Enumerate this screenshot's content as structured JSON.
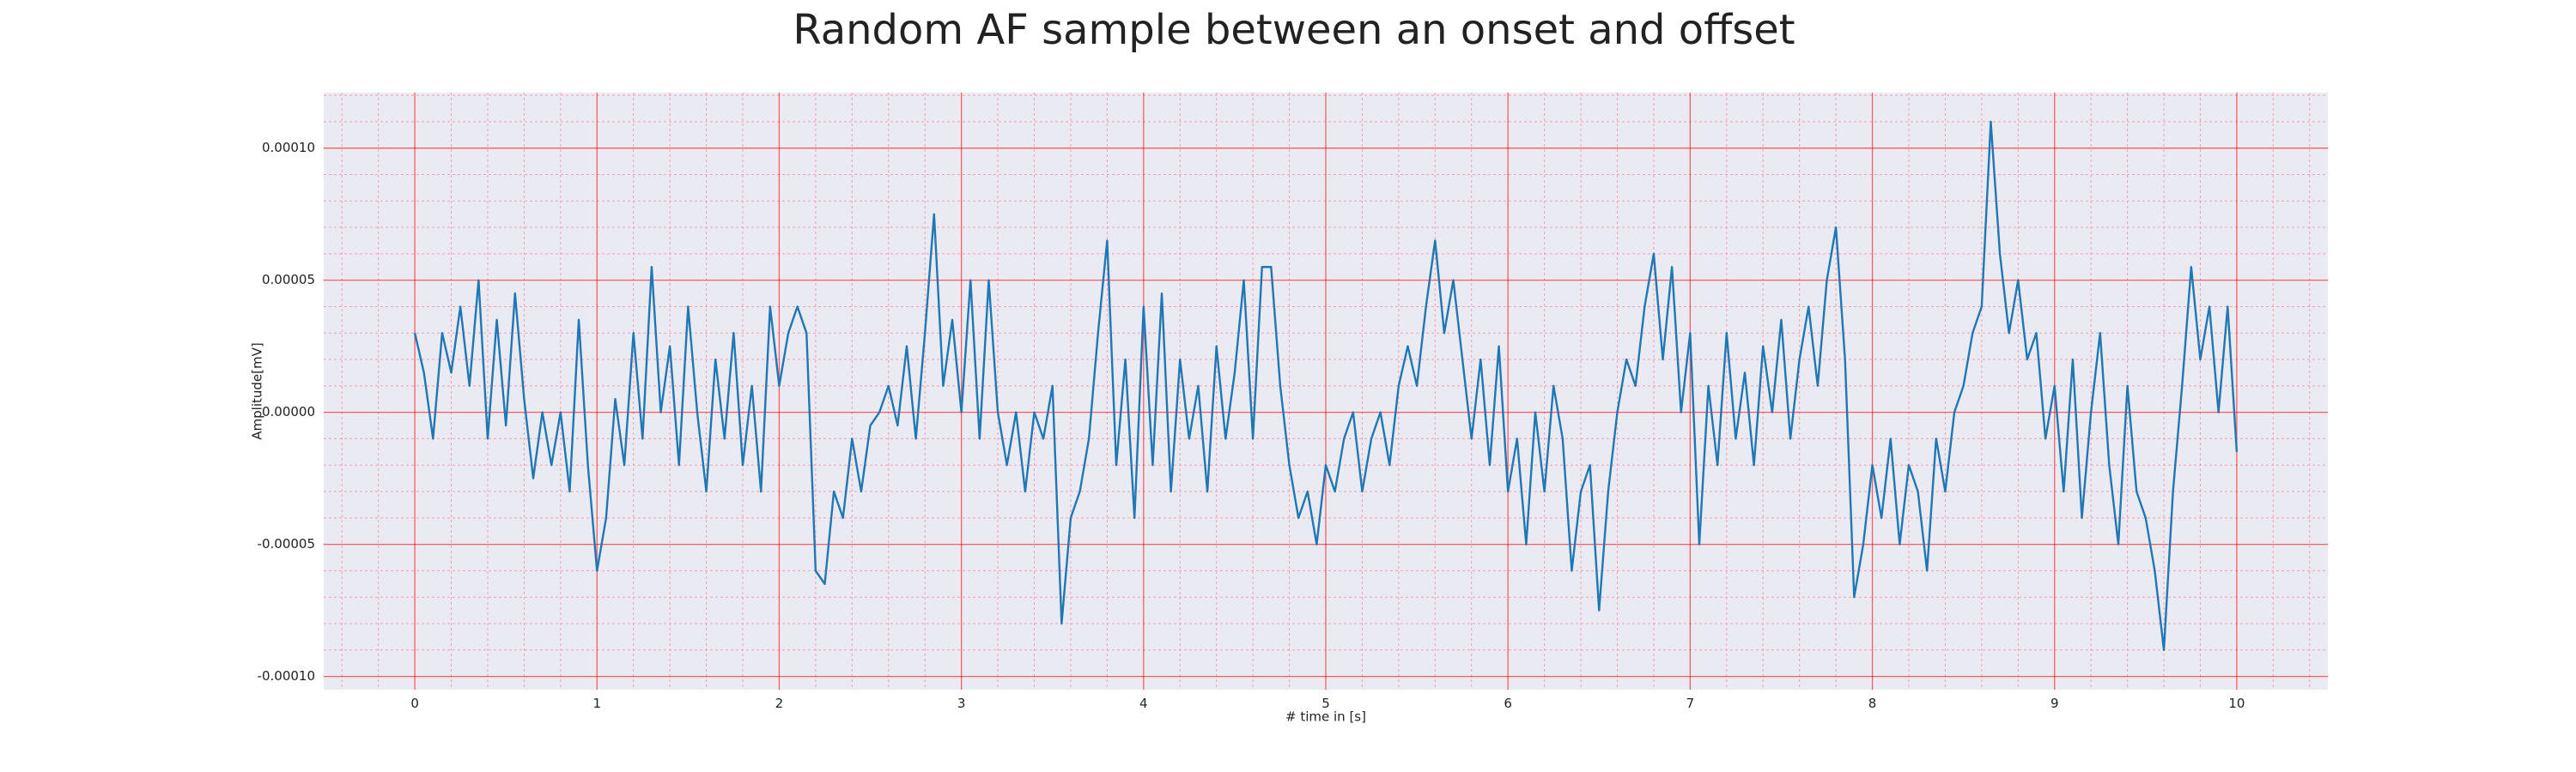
{
  "chart_data": {
    "type": "line",
    "title": "Random AF sample between an onset and offset",
    "xlabel": "# time in [s]",
    "ylabel": "Amplitude[mV]",
    "xlim": [
      -0.5,
      10.5
    ],
    "ylim": [
      -0.000105,
      0.000121
    ],
    "xticks": [
      0,
      1,
      2,
      3,
      4,
      5,
      6,
      7,
      8,
      9,
      10
    ],
    "yticks": [
      {
        "value": -0.0001,
        "label": "-0.00010"
      },
      {
        "value": -5e-05,
        "label": "-0.00005"
      },
      {
        "value": 0,
        "label": "0.00000"
      },
      {
        "value": 5e-05,
        "label": "0.00005"
      },
      {
        "value": 0.0001,
        "label": "0.00010"
      }
    ],
    "xminor_ticks": [
      -0.4,
      -0.2,
      0.2,
      0.4,
      0.6,
      0.8,
      1.2,
      1.4,
      1.6,
      1.8,
      2.2,
      2.4,
      2.6,
      2.8,
      3.2,
      3.4,
      3.6,
      3.8,
      4.2,
      4.4,
      4.6,
      4.8,
      5.2,
      5.4,
      5.6,
      5.8,
      6.2,
      6.4,
      6.6,
      6.8,
      7.2,
      7.4,
      7.6,
      7.8,
      8.2,
      8.4,
      8.6,
      8.8,
      9.2,
      9.4,
      9.6,
      9.8,
      10.2,
      10.4
    ],
    "yminor_ticks": [
      -9e-05,
      -8e-05,
      -7e-05,
      -6e-05,
      -4e-05,
      -3e-05,
      -2e-05,
      -1e-05,
      1e-05,
      2e-05,
      3e-05,
      4e-05,
      6e-05,
      7e-05,
      8e-05,
      9e-05,
      0.00011,
      0.00012
    ],
    "grid": true,
    "minor_grid": true,
    "grid_color": "#ff0000",
    "minor_grid_color": "#f4a0b0",
    "background": "#eaeaf2",
    "series": [
      {
        "color": "#1f77b4",
        "x": [
          0,
          0.05,
          0.1,
          0.15,
          0.2,
          0.25,
          0.3,
          0.35,
          0.4,
          0.45,
          0.5,
          0.55,
          0.6,
          0.65,
          0.7,
          0.75,
          0.8,
          0.85,
          0.9,
          0.95,
          1,
          1.05,
          1.1,
          1.15,
          1.2,
          1.25,
          1.3,
          1.35,
          1.4,
          1.45,
          1.5,
          1.55,
          1.6,
          1.65,
          1.7,
          1.75,
          1.8,
          1.85,
          1.9,
          1.95,
          2,
          2.05,
          2.1,
          2.15,
          2.2,
          2.25,
          2.3,
          2.35,
          2.4,
          2.45,
          2.5,
          2.55,
          2.6,
          2.65,
          2.7,
          2.75,
          2.8,
          2.85,
          2.9,
          2.95,
          3,
          3.05,
          3.1,
          3.15,
          3.2,
          3.25,
          3.3,
          3.35,
          3.4,
          3.45,
          3.5,
          3.55,
          3.6,
          3.65,
          3.7,
          3.75,
          3.8,
          3.85,
          3.9,
          3.95,
          4,
          4.05,
          4.1,
          4.15,
          4.2,
          4.25,
          4.3,
          4.35,
          4.4,
          4.45,
          4.5,
          4.55,
          4.6,
          4.65,
          4.7,
          4.75,
          4.8,
          4.85,
          4.9,
          4.95,
          5,
          5.05,
          5.1,
          5.15,
          5.2,
          5.25,
          5.3,
          5.35,
          5.4,
          5.45,
          5.5,
          5.55,
          5.6,
          5.65,
          5.7,
          5.75,
          5.8,
          5.85,
          5.9,
          5.95,
          6,
          6.05,
          6.1,
          6.15,
          6.2,
          6.25,
          6.3,
          6.35,
          6.4,
          6.45,
          6.5,
          6.55,
          6.6,
          6.65,
          6.7,
          6.75,
          6.8,
          6.85,
          6.9,
          6.95,
          7,
          7.05,
          7.1,
          7.15,
          7.2,
          7.25,
          7.3,
          7.35,
          7.4,
          7.45,
          7.5,
          7.55,
          7.6,
          7.65,
          7.7,
          7.75,
          7.8,
          7.85,
          7.9,
          7.95,
          8,
          8.05,
          8.1,
          8.15,
          8.2,
          8.25,
          8.3,
          8.35,
          8.4,
          8.45,
          8.5,
          8.55,
          8.6,
          8.65,
          8.7,
          8.75,
          8.8,
          8.85,
          8.9,
          8.95,
          9,
          9.05,
          9.1,
          9.15,
          9.2,
          9.25,
          9.3,
          9.35,
          9.4,
          9.45,
          9.5,
          9.55,
          9.6,
          9.65,
          9.7,
          9.75,
          9.8,
          9.85,
          9.9,
          9.95,
          10
        ],
        "values": [
          3e-05,
          1.5e-05,
          -1e-05,
          3e-05,
          1.5e-05,
          4e-05,
          1e-05,
          5e-05,
          -1e-05,
          3.5e-05,
          -5e-06,
          4.5e-05,
          5e-06,
          -2.5e-05,
          0,
          -2e-05,
          0,
          -3e-05,
          3.5e-05,
          -2e-05,
          -6e-05,
          -4e-05,
          5e-06,
          -2e-05,
          3e-05,
          -1e-05,
          5.5e-05,
          0,
          2.5e-05,
          -2e-05,
          4e-05,
          0,
          -3e-05,
          2e-05,
          -1e-05,
          3e-05,
          -2e-05,
          1e-05,
          -3e-05,
          4e-05,
          1e-05,
          3e-05,
          4e-05,
          3e-05,
          -6e-05,
          -6.5e-05,
          -3e-05,
          -4e-05,
          -1e-05,
          -3e-05,
          -5e-06,
          0,
          1e-05,
          -5e-06,
          2.5e-05,
          -1e-05,
          3e-05,
          7.5e-05,
          1e-05,
          3.5e-05,
          0,
          5e-05,
          -1e-05,
          5e-05,
          0,
          -2e-05,
          0,
          -3e-05,
          0,
          -1e-05,
          1e-05,
          -8e-05,
          -4e-05,
          -3e-05,
          -1e-05,
          3e-05,
          6.5e-05,
          -2e-05,
          2e-05,
          -4e-05,
          4e-05,
          -2e-05,
          4.5e-05,
          -3e-05,
          2e-05,
          -1e-05,
          1e-05,
          -3e-05,
          2.5e-05,
          -1e-05,
          1.5e-05,
          5e-05,
          -1e-05,
          5.5e-05,
          5.5e-05,
          1e-05,
          -2e-05,
          -4e-05,
          -3e-05,
          -5e-05,
          -2e-05,
          -3e-05,
          -1e-05,
          0,
          -3e-05,
          -1e-05,
          0,
          -2e-05,
          1e-05,
          2.5e-05,
          1e-05,
          4e-05,
          6.5e-05,
          3e-05,
          5e-05,
          2e-05,
          -1e-05,
          2e-05,
          -2e-05,
          2.5e-05,
          -3e-05,
          -1e-05,
          -5e-05,
          0,
          -3e-05,
          1e-05,
          -1e-05,
          -6e-05,
          -3e-05,
          -2e-05,
          -7.5e-05,
          -3e-05,
          0,
          2e-05,
          1e-05,
          4e-05,
          6e-05,
          2e-05,
          5.5e-05,
          0,
          3e-05,
          -5e-05,
          1e-05,
          -2e-05,
          3e-05,
          -1e-05,
          1.5e-05,
          -2e-05,
          2.5e-05,
          0,
          3.5e-05,
          -1e-05,
          2e-05,
          4e-05,
          1e-05,
          5e-05,
          7e-05,
          2e-05,
          -7e-05,
          -5e-05,
          -2e-05,
          -4e-05,
          -1e-05,
          -5e-05,
          -2e-05,
          -3e-05,
          -6e-05,
          -1e-05,
          -3e-05,
          0,
          1e-05,
          3e-05,
          4e-05,
          0.00011,
          6e-05,
          3e-05,
          5e-05,
          2e-05,
          3e-05,
          -1e-05,
          1e-05,
          -3e-05,
          2e-05,
          -4e-05,
          0,
          3e-05,
          -2e-05,
          -5e-05,
          1e-05,
          -3e-05,
          -4e-05,
          -6e-05,
          -9e-05,
          -3e-05,
          1e-05,
          5.5e-05,
          2e-05,
          4e-05,
          0,
          4e-05,
          -1.5e-05
        ]
      }
    ]
  }
}
